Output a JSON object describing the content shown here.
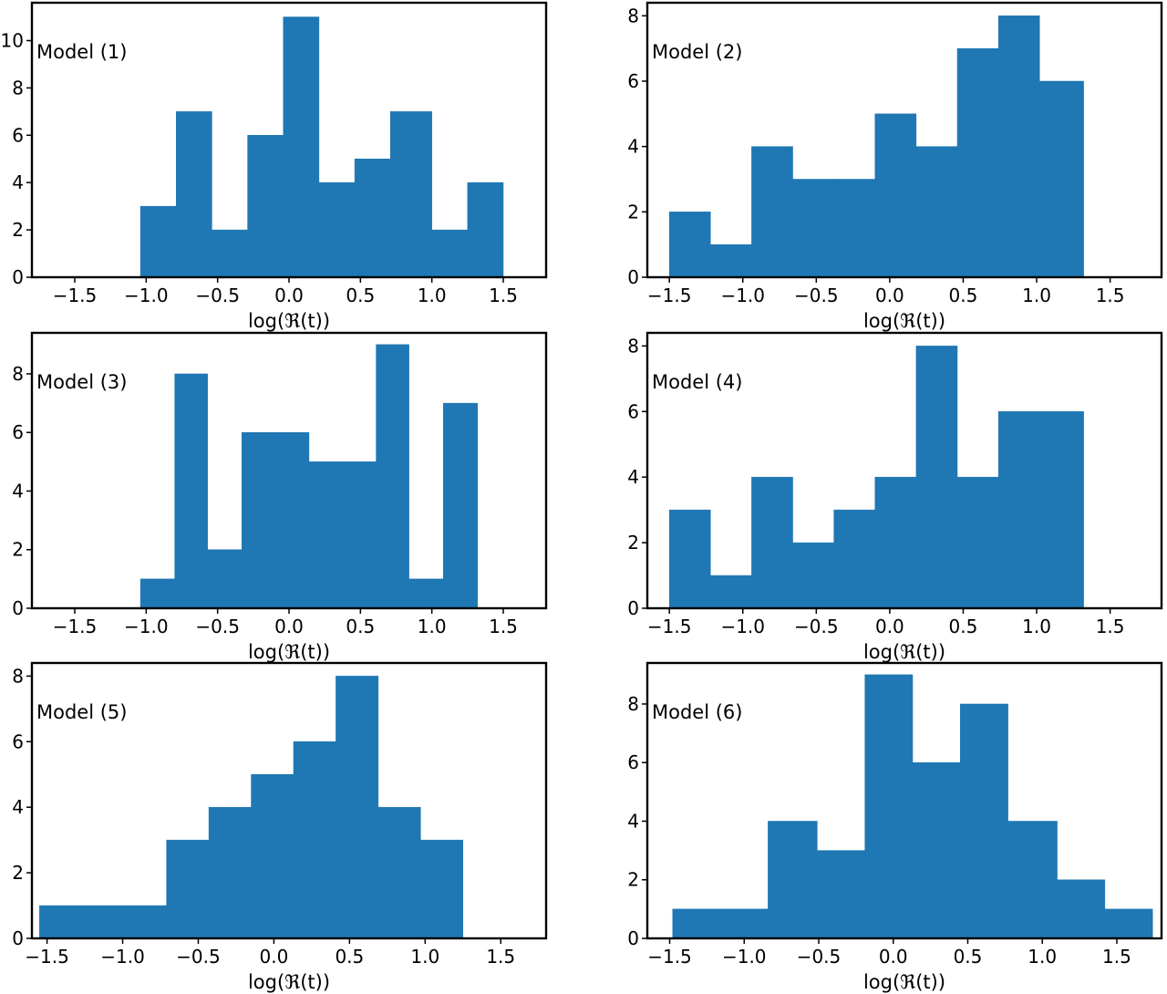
{
  "colors": {
    "bar": "#1f77b4",
    "axes": "#000000",
    "background": "#ffffff"
  },
  "chart_data": [
    {
      "type": "bar",
      "annotation": "Model (1)",
      "xlabel": "log(ℜ(t))",
      "ylabel": "",
      "xlim": [
        -1.8,
        1.8
      ],
      "ylim": [
        0,
        11.6
      ],
      "xticks": [
        -1.5,
        -1.0,
        -0.5,
        0.0,
        0.5,
        1.0,
        1.5
      ],
      "yticks": [
        0,
        2,
        4,
        6,
        8,
        10
      ],
      "bin_edges": [
        -1.04,
        -0.79,
        -0.54,
        -0.29,
        -0.04,
        0.21,
        0.46,
        0.71,
        1.0,
        1.25,
        1.5
      ],
      "values": [
        3,
        7,
        2,
        6,
        11,
        4,
        5,
        7,
        2,
        4
      ]
    },
    {
      "type": "bar",
      "annotation": "Model (2)",
      "xlabel": "log(ℜ(t))",
      "ylabel": "",
      "xlim": [
        -1.65,
        1.85
      ],
      "ylim": [
        0,
        8.4
      ],
      "xticks": [
        -1.5,
        -1.0,
        -0.5,
        0.0,
        0.5,
        1.0,
        1.5
      ],
      "yticks": [
        0,
        2,
        4,
        6,
        8
      ],
      "bin_edges": [
        -1.5,
        -1.22,
        -0.94,
        -0.66,
        -0.38,
        -0.1,
        0.18,
        0.46,
        0.74,
        1.02,
        1.32
      ],
      "values": [
        2,
        1,
        4,
        3,
        3,
        5,
        4,
        7,
        8,
        6
      ]
    },
    {
      "type": "bar",
      "annotation": "Model (3)",
      "xlabel": "log(ℜ(t))",
      "ylabel": "",
      "xlim": [
        -1.8,
        1.8
      ],
      "ylim": [
        0,
        9.4
      ],
      "xticks": [
        -1.5,
        -1.0,
        -0.5,
        0.0,
        0.5,
        1.0,
        1.5
      ],
      "yticks": [
        0,
        2,
        4,
        6,
        8
      ],
      "bin_edges": [
        -1.04,
        -0.8,
        -0.57,
        -0.33,
        -0.1,
        0.14,
        0.37,
        0.61,
        0.84,
        1.08,
        1.32
      ],
      "values": [
        1,
        8,
        2,
        6,
        6,
        5,
        5,
        9,
        1,
        7
      ]
    },
    {
      "type": "bar",
      "annotation": "Model (4)",
      "xlabel": "log(ℜ(t))",
      "ylabel": "",
      "xlim": [
        -1.65,
        1.85
      ],
      "ylim": [
        0,
        8.4
      ],
      "xticks": [
        -1.5,
        -1.0,
        -0.5,
        0.0,
        0.5,
        1.0,
        1.5
      ],
      "yticks": [
        0,
        2,
        4,
        6,
        8
      ],
      "bin_edges": [
        -1.5,
        -1.22,
        -0.94,
        -0.66,
        -0.38,
        -0.1,
        0.18,
        0.46,
        0.74,
        1.02,
        1.32
      ],
      "values": [
        3,
        1,
        4,
        2,
        3,
        4,
        8,
        4,
        6,
        6
      ]
    },
    {
      "type": "bar",
      "annotation": "Model (5)",
      "xlabel": "log(ℜ(t))",
      "ylabel": "",
      "xlim": [
        -1.6,
        1.8
      ],
      "ylim": [
        0,
        8.4
      ],
      "xticks": [
        -1.5,
        -1.0,
        -0.5,
        0.0,
        0.5,
        1.0,
        1.5
      ],
      "yticks": [
        0,
        2,
        4,
        6,
        8
      ],
      "bin_edges": [
        -1.55,
        -1.27,
        -0.99,
        -0.71,
        -0.43,
        -0.15,
        0.13,
        0.41,
        0.69,
        0.97,
        1.25
      ],
      "values": [
        1,
        1,
        1,
        3,
        4,
        5,
        6,
        8,
        4,
        3
      ]
    },
    {
      "type": "bar",
      "annotation": "Model (6)",
      "xlabel": "log(ℜ(t))",
      "ylabel": "",
      "xlim": [
        -1.65,
        1.8
      ],
      "ylim": [
        0,
        9.4
      ],
      "xticks": [
        -1.5,
        -1.0,
        -0.5,
        0.0,
        0.5,
        1.0,
        1.5
      ],
      "yticks": [
        0,
        2,
        4,
        6,
        8
      ],
      "bin_edges": [
        -1.48,
        -1.16,
        -0.84,
        -0.51,
        -0.19,
        0.13,
        0.45,
        0.77,
        1.1,
        1.42,
        1.74
      ],
      "values": [
        1,
        1,
        4,
        3,
        9,
        6,
        8,
        4,
        2,
        1
      ]
    }
  ]
}
